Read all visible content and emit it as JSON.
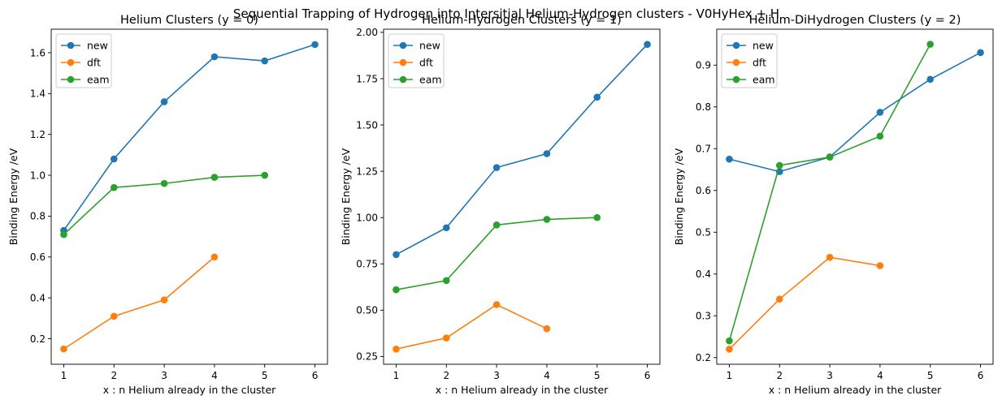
{
  "figure": {
    "suptitle": "Sequential Trapping of Hydrogen into Intersitial Helium-Hydrogen clusters - V0HyHex + H"
  },
  "colors": {
    "new": "#1f77b4",
    "dft": "#ff7f0e",
    "eam": "#2ca02c"
  },
  "chart_data": [
    {
      "type": "line",
      "title": "Helium Clusters (y = 0)",
      "xlabel": "x : n Helium already in the cluster",
      "ylabel": "Binding Energy /eV",
      "xlim": [
        0.75,
        6.25
      ],
      "ylim": [
        0.075,
        1.715
      ],
      "xticks": [
        1,
        2,
        3,
        4,
        5,
        6
      ],
      "xtick_labels": [
        "1",
        "2",
        "3",
        "4",
        "5",
        "6"
      ],
      "yticks": [
        0.2,
        0.4,
        0.6,
        0.8,
        1.0,
        1.2,
        1.4,
        1.6
      ],
      "ytick_labels": [
        "0.2",
        "0.4",
        "0.6",
        "0.8",
        "1.0",
        "1.2",
        "1.4",
        "1.6"
      ],
      "legend": "top-left",
      "grid": false,
      "series": [
        {
          "name": "new",
          "x": [
            1,
            2,
            3,
            4,
            5,
            6
          ],
          "y": [
            0.73,
            1.08,
            1.36,
            1.58,
            1.56,
            1.64
          ]
        },
        {
          "name": "dft",
          "x": [
            1,
            2,
            3,
            4
          ],
          "y": [
            0.15,
            0.31,
            0.39,
            0.6
          ]
        },
        {
          "name": "eam",
          "x": [
            1,
            2,
            3,
            4,
            5
          ],
          "y": [
            0.71,
            0.94,
            0.96,
            0.99,
            1.0
          ]
        }
      ]
    },
    {
      "type": "line",
      "title": "Helium-Hydrogen Clusters (y = 1)",
      "xlabel": "x : n Helium already in the cluster",
      "ylabel": "Binding Energy /eV",
      "xlim": [
        0.75,
        6.25
      ],
      "ylim": [
        0.208,
        2.017
      ],
      "xticks": [
        1,
        2,
        3,
        4,
        5,
        6
      ],
      "xtick_labels": [
        "1",
        "2",
        "3",
        "4",
        "5",
        "6"
      ],
      "yticks": [
        0.25,
        0.5,
        0.75,
        1.0,
        1.25,
        1.5,
        1.75,
        2.0
      ],
      "ytick_labels": [
        "0.25",
        "0.50",
        "0.75",
        "1.00",
        "1.25",
        "1.50",
        "1.75",
        "2.00"
      ],
      "legend": "top-left",
      "grid": false,
      "series": [
        {
          "name": "new",
          "x": [
            1,
            2,
            3,
            4,
            5,
            6
          ],
          "y": [
            0.8,
            0.945,
            1.27,
            1.345,
            1.65,
            1.935
          ]
        },
        {
          "name": "dft",
          "x": [
            1,
            2,
            3,
            4
          ],
          "y": [
            0.29,
            0.35,
            0.53,
            0.4
          ]
        },
        {
          "name": "eam",
          "x": [
            1,
            2,
            3,
            4,
            5
          ],
          "y": [
            0.61,
            0.66,
            0.96,
            0.99,
            1.0
          ]
        }
      ]
    },
    {
      "type": "line",
      "title": "Helium-DiHydrogen Clusters (y = 2)",
      "xlabel": "x : n Helium already in the cluster",
      "ylabel": "Binding Energy /eV",
      "xlim": [
        0.75,
        6.25
      ],
      "ylim": [
        0.184,
        0.986
      ],
      "xticks": [
        1,
        2,
        3,
        4,
        5,
        6
      ],
      "xtick_labels": [
        "1",
        "2",
        "3",
        "4",
        "5",
        "6"
      ],
      "yticks": [
        0.2,
        0.3,
        0.4,
        0.5,
        0.6,
        0.7,
        0.8,
        0.9
      ],
      "ytick_labels": [
        "0.2",
        "0.3",
        "0.4",
        "0.5",
        "0.6",
        "0.7",
        "0.8",
        "0.9"
      ],
      "legend": "top-left",
      "grid": false,
      "series": [
        {
          "name": "new",
          "x": [
            1,
            2,
            3,
            4,
            5,
            6
          ],
          "y": [
            0.675,
            0.645,
            0.68,
            0.787,
            0.866,
            0.93
          ]
        },
        {
          "name": "dft",
          "x": [
            1,
            2,
            3,
            4
          ],
          "y": [
            0.22,
            0.34,
            0.44,
            0.42
          ]
        },
        {
          "name": "eam",
          "x": [
            1,
            2,
            3,
            4,
            5
          ],
          "y": [
            0.24,
            0.66,
            0.68,
            0.73,
            0.95
          ]
        }
      ]
    }
  ]
}
